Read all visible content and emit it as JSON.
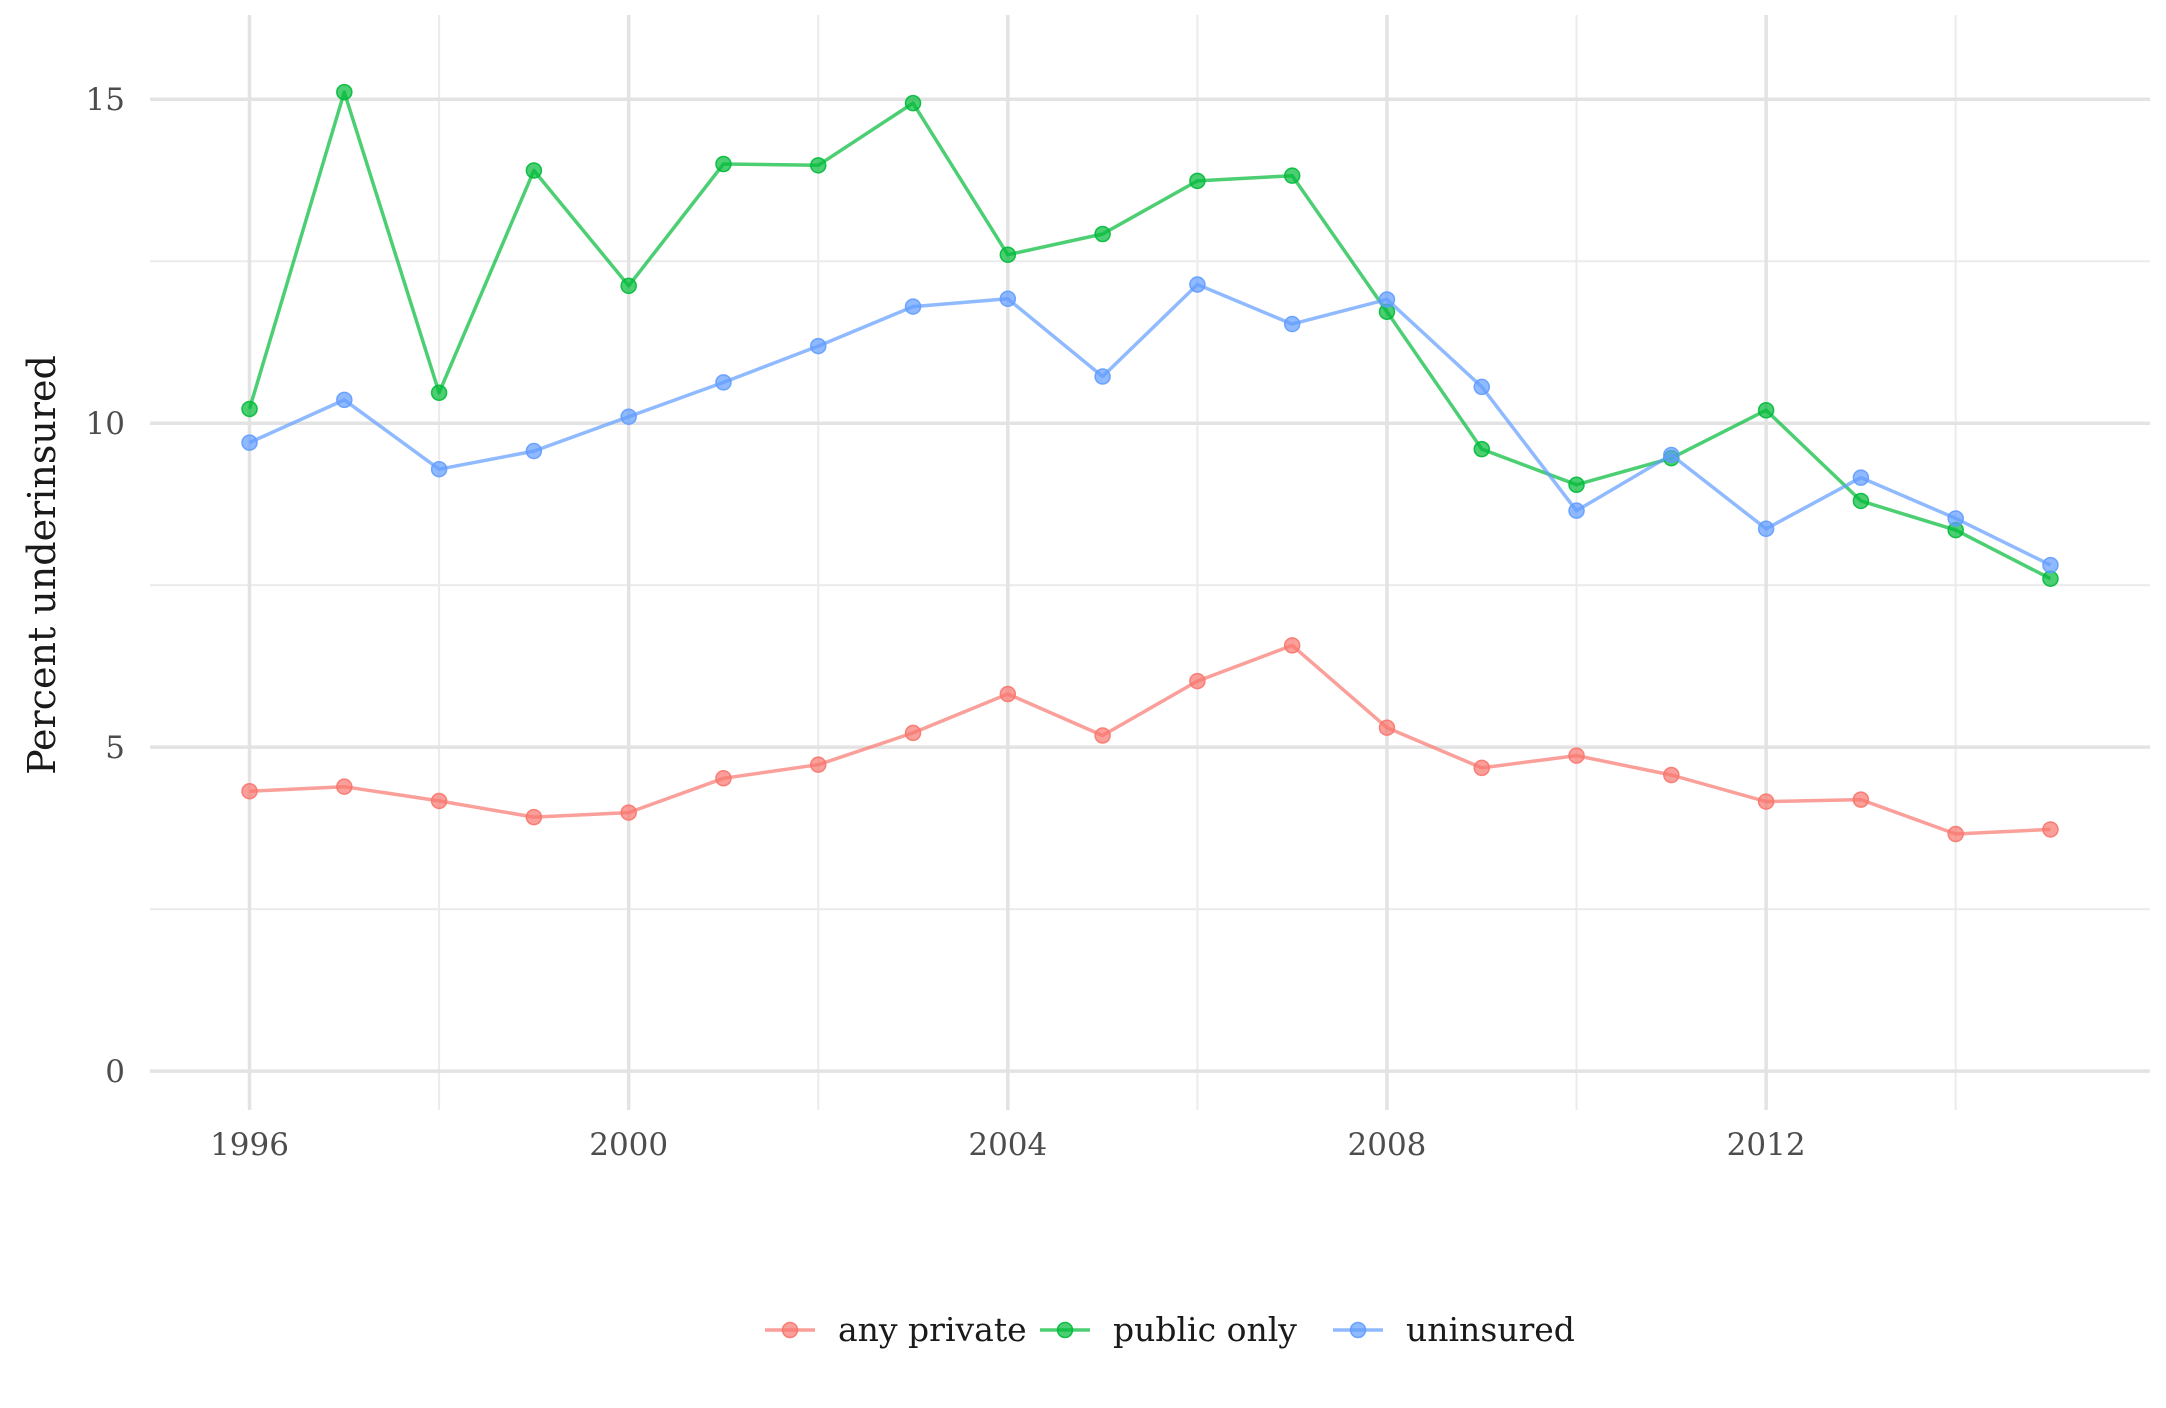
{
  "chart_data": {
    "type": "line",
    "title": "",
    "xlabel": "",
    "ylabel": "Percent underinsured",
    "x": [
      1996,
      1997,
      1998,
      1999,
      2000,
      2001,
      2002,
      2003,
      2004,
      2005,
      2006,
      2007,
      2008,
      2009,
      2010,
      2011,
      2012,
      2013,
      2014,
      2015
    ],
    "xlim": [
      1994.95,
      2016.05
    ],
    "ylim": [
      -0.6,
      16.3
    ],
    "x_ticks": [
      1996,
      2000,
      2004,
      2008,
      2012
    ],
    "x_tick_labels": [
      "1996",
      "2000",
      "2004",
      "2008",
      "2012"
    ],
    "y_ticks": [
      0,
      5,
      10,
      15
    ],
    "y_tick_labels": [
      "0",
      "5",
      "10",
      "15"
    ],
    "grid": true,
    "legend_position": "bottom",
    "series": [
      {
        "name": "any private",
        "color": "#F8766D",
        "values": [
          4.32,
          4.39,
          4.17,
          3.92,
          3.99,
          4.52,
          4.73,
          5.22,
          5.82,
          5.18,
          6.02,
          6.57,
          5.3,
          4.68,
          4.87,
          4.57,
          4.16,
          4.19,
          3.66,
          3.73
        ]
      },
      {
        "name": "public only",
        "color": "#00BA38",
        "values": [
          10.22,
          15.11,
          10.47,
          13.9,
          12.12,
          14.0,
          13.98,
          14.94,
          12.6,
          12.92,
          13.74,
          13.82,
          11.72,
          9.6,
          9.05,
          9.46,
          10.2,
          8.8,
          8.35,
          7.6
        ]
      },
      {
        "name": "uninsured",
        "color": "#619CFF",
        "values": [
          9.7,
          10.36,
          9.29,
          9.57,
          10.1,
          10.63,
          11.19,
          11.8,
          11.92,
          10.72,
          12.14,
          11.53,
          11.91,
          10.56,
          8.65,
          9.51,
          8.37,
          9.16,
          8.53,
          7.81
        ]
      }
    ]
  }
}
